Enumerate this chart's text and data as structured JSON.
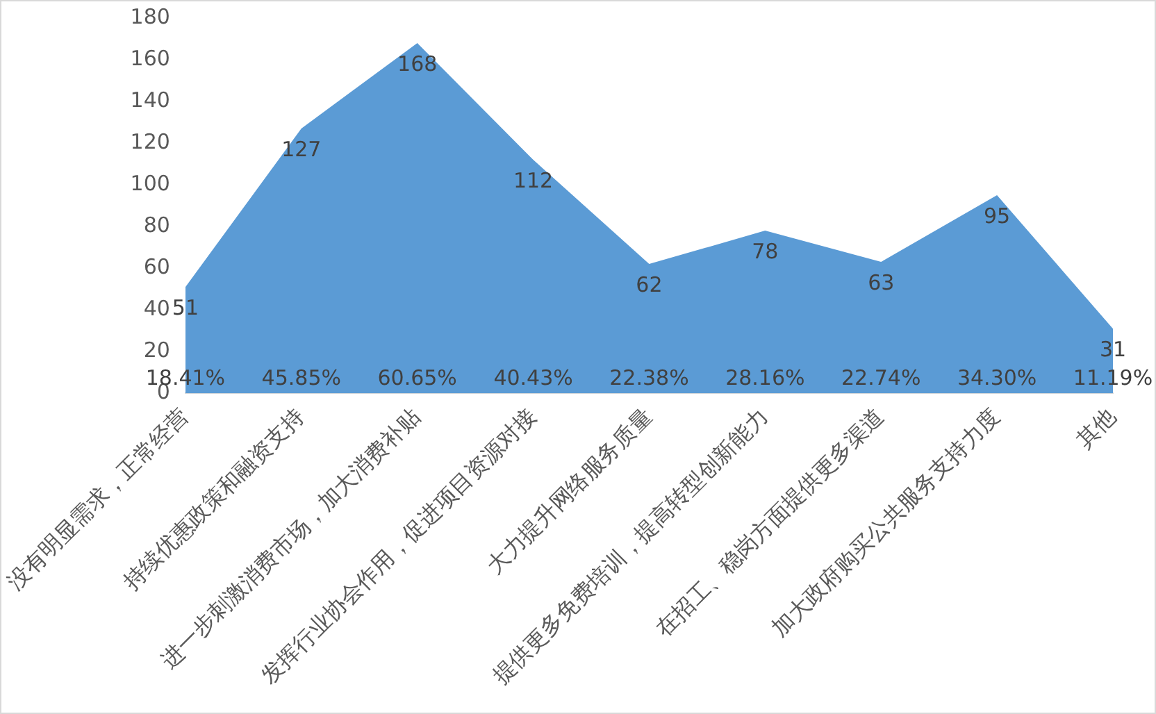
{
  "chart_data": {
    "type": "area",
    "categories": [
      "没有明显需求，正常经营",
      "持续优惠政策和融资支持",
      "进一步刺激消费市场，加大消费补贴",
      "发挥行业协会作用，促进项目资源对接",
      "大力提升网络服务质量",
      "提供更多免费培训，提高转型创新能力",
      "在招工、稳岗方面提供更多渠道",
      "加大政府购买公共服务支持力度",
      "其他"
    ],
    "values": [
      51,
      127,
      168,
      112,
      62,
      78,
      63,
      95,
      31
    ],
    "color": "#5b9bd5",
    "ylim": [
      0,
      180
    ],
    "yticks": [
      0,
      20,
      40,
      60,
      80,
      100,
      120,
      140,
      160,
      180
    ],
    "grid": false,
    "legend": false,
    "data_labels": true,
    "annotations": [
      {
        "text": "18.41%",
        "x": "没有明显需求，正常经营",
        "y": 0
      },
      {
        "text": "45.85%",
        "x": "持续优惠政策和融资支持",
        "y": 0
      },
      {
        "text": "60.65%",
        "x": "进一步刺激消费市场，加大消费补贴",
        "y": 0
      },
      {
        "text": "40.43%",
        "x": "发挥行业协会作用，促进项目资源对接",
        "y": 0
      },
      {
        "text": "22.38%",
        "x": "大力提升网络服务质量",
        "y": 0
      },
      {
        "text": "28.16%",
        "x": "提供更多免费培训，提高转型创新能力",
        "y": 0
      },
      {
        "text": "22.74%",
        "x": "在招工、稳岗方面提供更多渠道",
        "y": 0
      },
      {
        "text": "34.30%",
        "x": "加大政府购买公共服务支持力度",
        "y": 0
      },
      {
        "text": "11.19%",
        "x": "其他",
        "y": 0
      }
    ]
  }
}
